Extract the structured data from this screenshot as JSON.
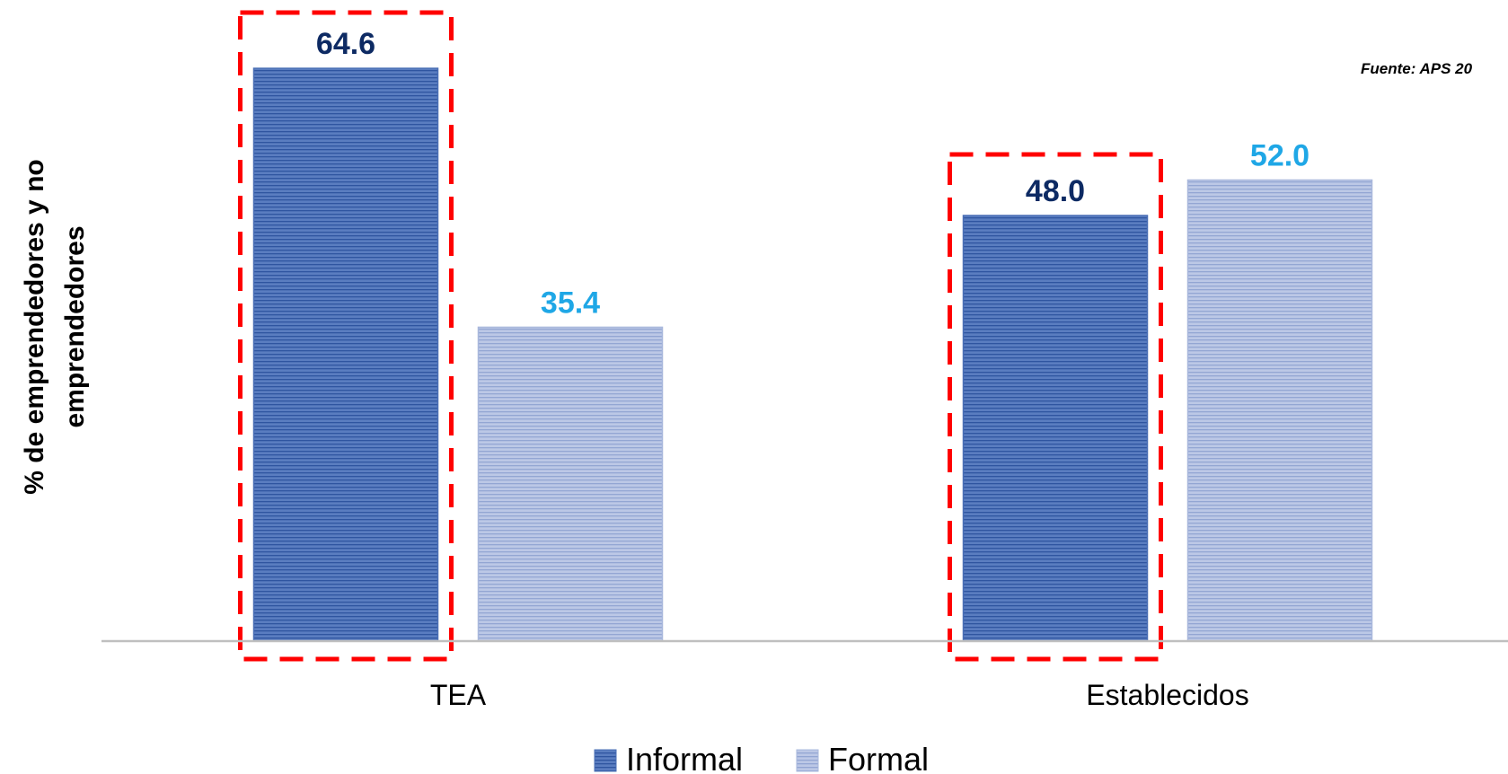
{
  "chart_data": {
    "type": "bar",
    "categories": [
      "TEA",
      "Establecidos"
    ],
    "series": [
      {
        "name": "Informal",
        "values": [
          64.6,
          48.0
        ],
        "color": "#4a6fb5",
        "label_color": "#0d2a63"
      },
      {
        "name": "Formal",
        "values": [
          35.4,
          52.0
        ],
        "color": "#a9b8dc",
        "label_color": "#1fa7e6"
      }
    ],
    "data_labels": [
      [
        "64.6",
        "48.0"
      ],
      [
        "35.4",
        "52.0"
      ]
    ],
    "ylabel_lines": [
      "% de emprendedores y no",
      "emprendedores"
    ],
    "source": "Fuente: APS 20",
    "ylim": [
      0,
      70
    ],
    "grid": false,
    "legend_position": "bottom",
    "highlight_color": "#ff0000"
  }
}
